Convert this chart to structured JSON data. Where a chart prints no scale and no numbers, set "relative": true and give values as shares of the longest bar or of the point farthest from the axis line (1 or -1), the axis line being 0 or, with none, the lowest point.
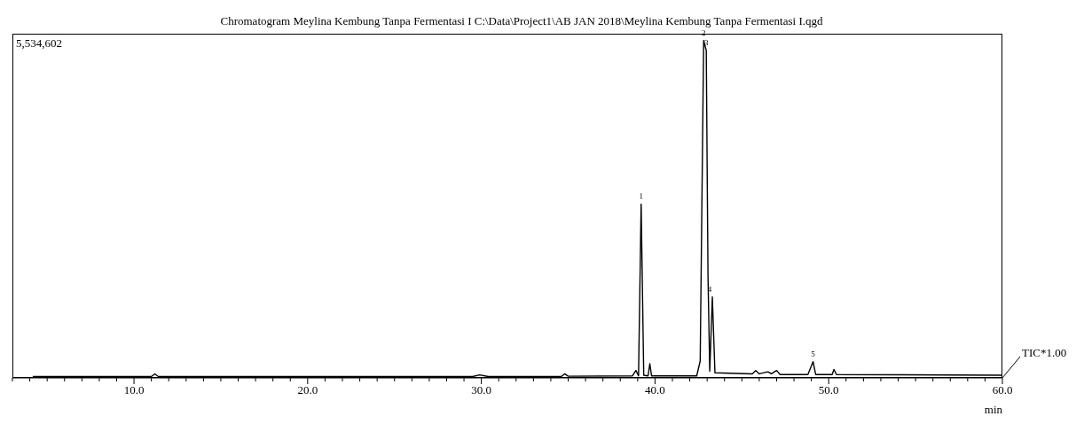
{
  "chart_data": {
    "type": "line",
    "title": "Chromatogram Meylina Kembung Tanpa Fermentasi I C:\\Data\\Project1\\AB JAN 2018\\Meylina Kembung Tanpa Fermentasi I.qgd",
    "xlabel": "min",
    "relative": true,
    "x": [
      4.2,
      11.0,
      11.2,
      11.4,
      29.5,
      29.9,
      30.4,
      34.6,
      34.8,
      35.0,
      38.7,
      38.9,
      39.05,
      39.2,
      39.35,
      39.6,
      39.7,
      39.8,
      42.4,
      42.6,
      42.8,
      42.95,
      43.05,
      43.15,
      43.3,
      43.45,
      45.6,
      45.8,
      46.0,
      46.5,
      46.7,
      47.0,
      47.2,
      48.8,
      49.1,
      49.25,
      50.2,
      50.3,
      50.45,
      60.0
    ],
    "series": [
      {
        "color": "#000000",
        "values": [
          0.004,
          0.004,
          0.012,
          0.004,
          0.004,
          0.009,
          0.004,
          0.004,
          0.012,
          0.005,
          0.006,
          0.022,
          0.006,
          0.515,
          0.008,
          0.006,
          0.042,
          0.006,
          0.006,
          0.05,
          1.0,
          0.97,
          0.3,
          0.02,
          0.24,
          0.015,
          0.012,
          0.022,
          0.012,
          0.018,
          0.012,
          0.022,
          0.01,
          0.01,
          0.048,
          0.01,
          0.01,
          0.025,
          0.01,
          0.008
        ]
      }
    ],
    "xlim": [
      3,
      60
    ],
    "xticks": [
      {
        "value": 3,
        "label": null
      },
      {
        "value": 4,
        "label": null
      },
      {
        "value": 5,
        "label": null
      },
      {
        "value": 6,
        "label": null
      },
      {
        "value": 7,
        "label": null
      },
      {
        "value": 8,
        "label": null
      },
      {
        "value": 9,
        "label": null
      },
      {
        "value": 10,
        "label": "10.0"
      },
      {
        "value": 11,
        "label": null
      },
      {
        "value": 12,
        "label": null
      },
      {
        "value": 13,
        "label": null
      },
      {
        "value": 14,
        "label": null
      },
      {
        "value": 15,
        "label": null
      },
      {
        "value": 16,
        "label": null
      },
      {
        "value": 17,
        "label": null
      },
      {
        "value": 18,
        "label": null
      },
      {
        "value": 19,
        "label": null
      },
      {
        "value": 20,
        "label": "20.0"
      },
      {
        "value": 21,
        "label": null
      },
      {
        "value": 22,
        "label": null
      },
      {
        "value": 23,
        "label": null
      },
      {
        "value": 24,
        "label": null
      },
      {
        "value": 25,
        "label": null
      },
      {
        "value": 26,
        "label": null
      },
      {
        "value": 27,
        "label": null
      },
      {
        "value": 28,
        "label": null
      },
      {
        "value": 29,
        "label": null
      },
      {
        "value": 30,
        "label": "30.0"
      },
      {
        "value": 31,
        "label": null
      },
      {
        "value": 32,
        "label": null
      },
      {
        "value": 33,
        "label": null
      },
      {
        "value": 34,
        "label": null
      },
      {
        "value": 35,
        "label": null
      },
      {
        "value": 36,
        "label": null
      },
      {
        "value": 37,
        "label": null
      },
      {
        "value": 38,
        "label": null
      },
      {
        "value": 39,
        "label": null
      },
      {
        "value": 40,
        "label": "40.0"
      },
      {
        "value": 41,
        "label": null
      },
      {
        "value": 42,
        "label": null
      },
      {
        "value": 43,
        "label": null
      },
      {
        "value": 44,
        "label": null
      },
      {
        "value": 45,
        "label": null
      },
      {
        "value": 46,
        "label": null
      },
      {
        "value": 47,
        "label": null
      },
      {
        "value": 48,
        "label": null
      },
      {
        "value": 49,
        "label": null
      },
      {
        "value": 50,
        "label": "50.0"
      },
      {
        "value": 51,
        "label": null
      },
      {
        "value": 52,
        "label": null
      },
      {
        "value": 53,
        "label": null
      },
      {
        "value": 54,
        "label": null
      },
      {
        "value": 55,
        "label": null
      },
      {
        "value": 56,
        "label": null
      },
      {
        "value": 57,
        "label": null
      },
      {
        "value": 58,
        "label": null
      },
      {
        "value": 59,
        "label": null
      },
      {
        "value": 60,
        "label": "60.0"
      }
    ],
    "grid": false,
    "legend": false,
    "marker": "none",
    "line_style": "solid",
    "annotations": [
      "5,534,602",
      "TIC*1.00",
      {
        "text": "1",
        "x": 39.2,
        "y": 0.515
      },
      {
        "text": "2",
        "x": 42.8,
        "y": 1.0
      },
      {
        "text": "3",
        "x": 42.95,
        "y": 0.97
      },
      {
        "text": "4",
        "x": 43.15,
        "y": 0.24
      },
      {
        "text": "5",
        "x": 49.1,
        "y": 0.048
      }
    ]
  }
}
